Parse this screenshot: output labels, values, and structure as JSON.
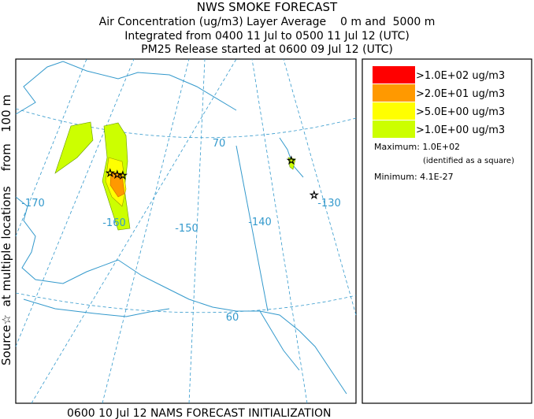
{
  "header": {
    "title": "NWS SMOKE FORECAST",
    "line1": "Air Concentration (ug/m3) Layer Average    0 m and  5000 m",
    "line2": "Integrated from 0400 11 Jul to 0500 11 Jul 12 (UTC)",
    "line3": "PM25 Release started at 0600 09 Jul 12 (UTC)"
  },
  "side_label": "Source☆  at multiple locations    from   100 m",
  "footer": "0600 10 Jul 12 NAMS FORECAST INITIALIZATION",
  "map": {
    "labels": [
      "-170",
      "-160",
      "-150",
      "-140",
      "-130",
      "70",
      "60"
    ]
  },
  "legend": {
    "items": [
      {
        "label": ">1.0E+02 ug/m3",
        "color": "#ff0000"
      },
      {
        "label": ">2.0E+01 ug/m3",
        "color": "#ff9900"
      },
      {
        "label": ">5.0E+00 ug/m3",
        "color": "#ffff00"
      },
      {
        "label": ">1.0E+00 ug/m3",
        "color": "#ccff00"
      }
    ],
    "maximum": "Maximum: 1.0E+02",
    "maximum_note": "(identified as a square)",
    "minimum": "Minimum: 4.1E-27"
  }
}
